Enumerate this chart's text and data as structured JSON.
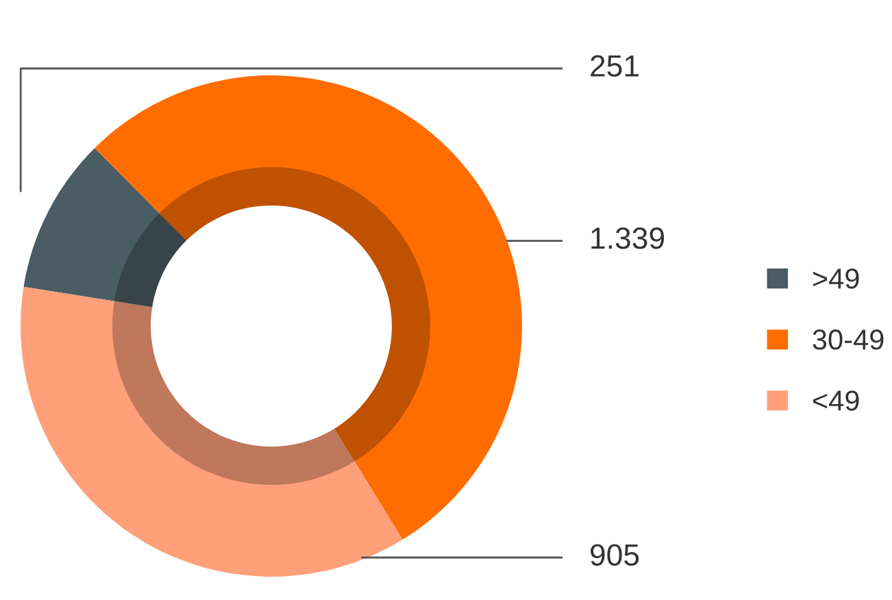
{
  "chart_data": {
    "type": "donut",
    "categories": [
      ">49",
      "30-49",
      "<49"
    ],
    "values": [
      251,
      1339,
      905
    ],
    "colors": [
      "#4a5c64",
      "#ff6d00",
      "#ffa07a"
    ],
    "value_labels": [
      "251",
      "1.339",
      "905"
    ],
    "legend": "right"
  }
}
